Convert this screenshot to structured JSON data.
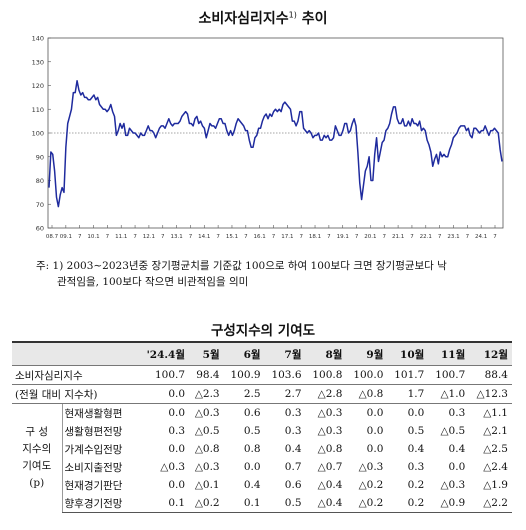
{
  "chart_title": "소비자심리지수",
  "chart_title_sup": "1)",
  "chart_title_suffix": "추이",
  "note_line1": "주: 1) 2003∼2023년중 장기평균치를 기준값 100으로 하여 100보다 크면 장기평균보다 낙",
  "note_line2": "관적임을, 100보다 작으면 비관적임을 의미",
  "table_title": "구성지수의 기여도",
  "chart_data": {
    "type": "line",
    "title": "",
    "xlabel": "",
    "ylabel": "",
    "ylim": [
      60,
      140
    ],
    "yticks": [
      "140",
      "130",
      "120",
      "110",
      "100",
      "90",
      "80",
      "70",
      "60"
    ],
    "xticks": [
      "08.7",
      "09.1",
      "7",
      "10.1",
      "7",
      "11.1",
      "7",
      "12.1",
      "7",
      "13.1",
      "7",
      "14.1",
      "7",
      "15.1",
      "7",
      "16.1",
      "7",
      "17.1",
      "7",
      "18.1",
      "7",
      "19.1",
      "7",
      "20.1",
      "7",
      "21.1",
      "7",
      "22.1",
      "7",
      "23.1",
      "7",
      "24.1",
      "7"
    ],
    "reference_line": 100,
    "grid": false,
    "color": "#1f2b9e",
    "series": [
      {
        "values": [
          77,
          92,
          91,
          84,
          73,
          69,
          74,
          77,
          75,
          94,
          104,
          107,
          110,
          117,
          117,
          122,
          118,
          116,
          117,
          115,
          115,
          114,
          114,
          115,
          116,
          114,
          115,
          112,
          111,
          110,
          110,
          109,
          110,
          112,
          109,
          107,
          99,
          101,
          104,
          102,
          104,
          99,
          99,
          102,
          101,
          100,
          100,
          99,
          98,
          100,
          99,
          99,
          101,
          103,
          101,
          101,
          100,
          98,
          100,
          102,
          103,
          103,
          102,
          104,
          106,
          104,
          103,
          104,
          104,
          104,
          105,
          107,
          108,
          109,
          108,
          104,
          104,
          103,
          106,
          107,
          104,
          105,
          103,
          102,
          98,
          101,
          104,
          103,
          103,
          102,
          104,
          106,
          106,
          104,
          104,
          101,
          99,
          101,
          99,
          101,
          104,
          106,
          105,
          104,
          103,
          101,
          101,
          97,
          94,
          94,
          98,
          99,
          102,
          102,
          105,
          107,
          108,
          106,
          108,
          107,
          109,
          110,
          109,
          110,
          109,
          112,
          113,
          112,
          111,
          110,
          105,
          105,
          103,
          105,
          109,
          109,
          102,
          101,
          100,
          101,
          100,
          98,
          99,
          99,
          100,
          97,
          97,
          99,
          98,
          99,
          97,
          97,
          98,
          103,
          101,
          99,
          99,
          101,
          104,
          104,
          100,
          101,
          104,
          106,
          103,
          92,
          79,
          72,
          78,
          84,
          86,
          90,
          80,
          80,
          91,
          98,
          88,
          92,
          96,
          97,
          101,
          102,
          104,
          108,
          111,
          111,
          106,
          104,
          104,
          106,
          103,
          103,
          105,
          103,
          106,
          104,
          104,
          103,
          105,
          101,
          102,
          101,
          97,
          95,
          92,
          86,
          89,
          91,
          87,
          92,
          90,
          91,
          90,
          90,
          93,
          95,
          98,
          99,
          100,
          102,
          103,
          103,
          103,
          101,
          102,
          99,
          98,
          102,
          102,
          101,
          100,
          101,
          101,
          103,
          101,
          99,
          101,
          101,
          102,
          101,
          100,
          93,
          88
        ]
      }
    ]
  },
  "table": {
    "headers": [
      "'24.4월",
      "5월",
      "6월",
      "7월",
      "8월",
      "9월",
      "10월",
      "11월",
      "12월"
    ],
    "total": {
      "label": "소비자심리지수",
      "values": [
        "100.7",
        "98.4",
        "100.9",
        "103.6",
        "100.8",
        "100.0",
        "101.7",
        "100.7",
        "88.4"
      ]
    },
    "avg": {
      "label": "(전월 대비 지수차)",
      "values": [
        "0.0",
        "△2.3",
        "2.5",
        "2.7",
        "△2.8",
        "△0.8",
        "1.7",
        "△1.0",
        "△12.3"
      ]
    },
    "group_label_1": "구 성",
    "group_label_2": "지수의",
    "group_label_3": "기여도",
    "group_label_4": "(p)",
    "rows": [
      {
        "label": "현재생활형편",
        "values": [
          "0.0",
          "△0.3",
          "0.6",
          "0.3",
          "△0.3",
          "0.0",
          "0.0",
          "0.3",
          "△1.1"
        ]
      },
      {
        "label": "생활형편전망",
        "values": [
          "0.3",
          "△0.5",
          "0.5",
          "0.3",
          "△0.3",
          "0.0",
          "0.5",
          "△0.5",
          "△2.1"
        ]
      },
      {
        "label": "가계수입전망",
        "values": [
          "0.0",
          "△0.8",
          "0.8",
          "0.4",
          "△0.8",
          "0.0",
          "0.4",
          "0.4",
          "△2.5"
        ]
      },
      {
        "label": "소비지출전망",
        "values": [
          "△0.3",
          "△0.3",
          "0.0",
          "0.7",
          "△0.7",
          "△0.3",
          "0.3",
          "0.0",
          "△2.4"
        ]
      },
      {
        "label": "현재경기판단",
        "values": [
          "0.0",
          "△0.1",
          "0.4",
          "0.6",
          "△0.4",
          "△0.2",
          "0.2",
          "△0.3",
          "△1.9"
        ]
      },
      {
        "label": "향후경기전망",
        "values": [
          "0.1",
          "△0.2",
          "0.1",
          "0.5",
          "△0.4",
          "△0.2",
          "0.2",
          "△0.9",
          "△2.2"
        ]
      }
    ]
  }
}
